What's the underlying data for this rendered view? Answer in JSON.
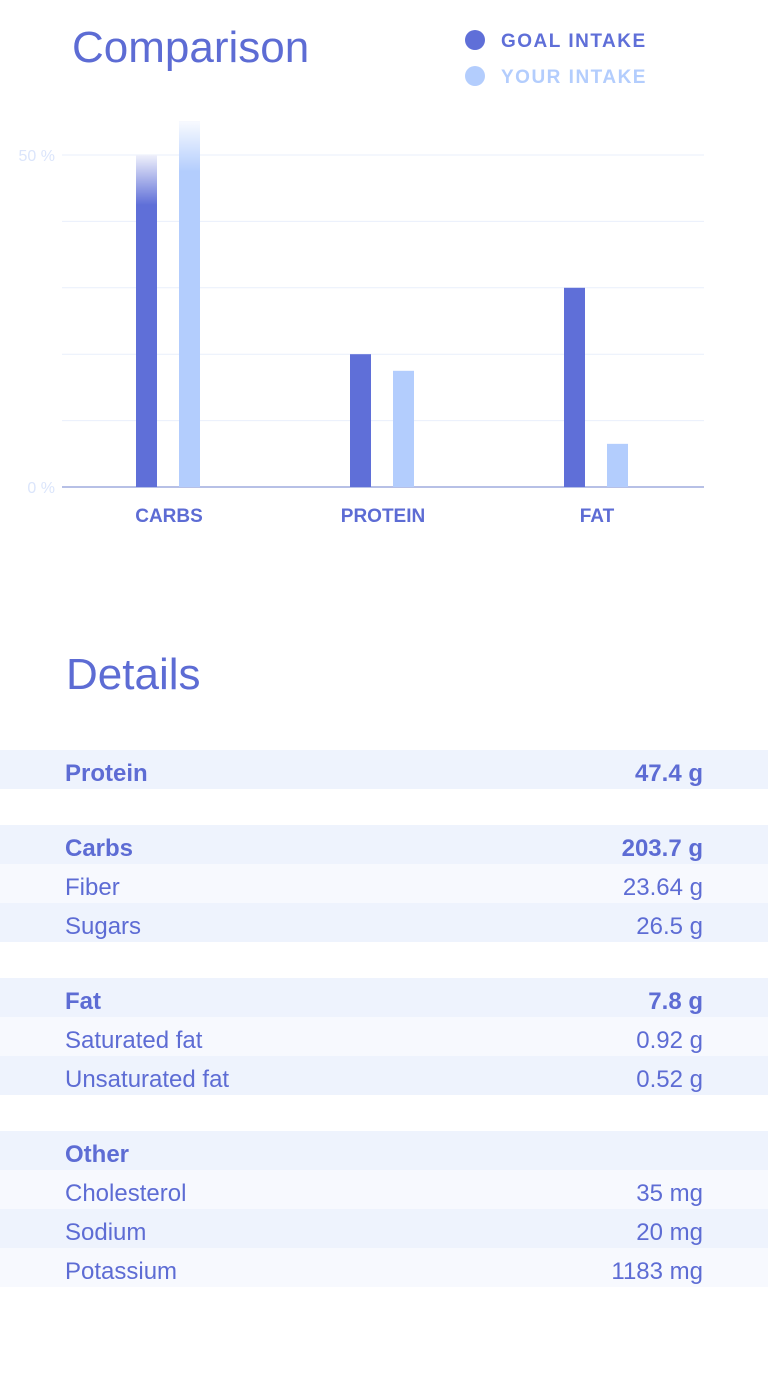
{
  "chart_data": {
    "type": "bar",
    "title": "Comparison",
    "categories": [
      "CARBS",
      "PROTEIN",
      "FAT"
    ],
    "series": [
      {
        "name": "GOAL INTAKE",
        "color": "#5f6fd8",
        "values": [
          50,
          20,
          30
        ]
      },
      {
        "name": "YOUR INTAKE",
        "color": "#b3cdfd",
        "values": [
          55,
          17.5,
          6.5
        ]
      }
    ],
    "ylim": [
      0,
      50
    ],
    "yticks": [
      {
        "value": 0,
        "label": "0 %"
      },
      {
        "value": 10,
        "label": null
      },
      {
        "value": 20,
        "label": null
      },
      {
        "value": 30,
        "label": null
      },
      {
        "value": 40,
        "label": null
      },
      {
        "value": 50,
        "label": "50 %"
      }
    ],
    "grid": true,
    "legend": "top-right"
  },
  "details": {
    "title": "Details",
    "groups": [
      {
        "name": "Protein",
        "value": "47.4 g",
        "rows": []
      },
      {
        "name": "Carbs",
        "value": "203.7 g",
        "rows": [
          {
            "name": "Fiber",
            "value": "23.64 g"
          },
          {
            "name": "Sugars",
            "value": "26.5 g"
          }
        ]
      },
      {
        "name": "Fat",
        "value": "7.8 g",
        "rows": [
          {
            "name": "Saturated fat",
            "value": "0.92 g"
          },
          {
            "name": "Unsaturated fat",
            "value": "0.52 g"
          }
        ]
      },
      {
        "name": "Other",
        "value": null,
        "rows": [
          {
            "name": "Cholesterol",
            "value": "35 mg"
          },
          {
            "name": "Sodium",
            "value": "20 mg"
          },
          {
            "name": "Potassium",
            "value": "1183 mg"
          }
        ]
      }
    ]
  }
}
